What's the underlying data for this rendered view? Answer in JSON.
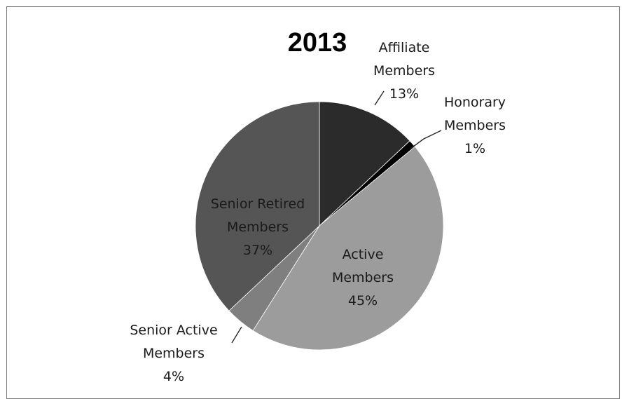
{
  "chart_data": {
    "type": "pie",
    "title": "2013",
    "slices": [
      {
        "label_lines": [
          "Affiliate",
          "Members",
          "13%"
        ],
        "value": 13,
        "color": "#2b2b2b",
        "label_position": "outside"
      },
      {
        "label_lines": [
          "Honorary",
          "Members",
          "1%"
        ],
        "value": 1,
        "color": "#000000",
        "label_position": "outside"
      },
      {
        "label_lines": [
          "Active",
          "Members",
          "45%"
        ],
        "value": 45,
        "color": "#9c9c9c",
        "label_position": "inside"
      },
      {
        "label_lines": [
          "Senior Active",
          "Members",
          "4%"
        ],
        "value": 4,
        "color": "#7f7f7f",
        "label_position": "outside"
      },
      {
        "label_lines": [
          "Senior Retired",
          "Members",
          "37%"
        ],
        "value": 37,
        "color": "#555555",
        "label_position": "inside"
      }
    ]
  }
}
